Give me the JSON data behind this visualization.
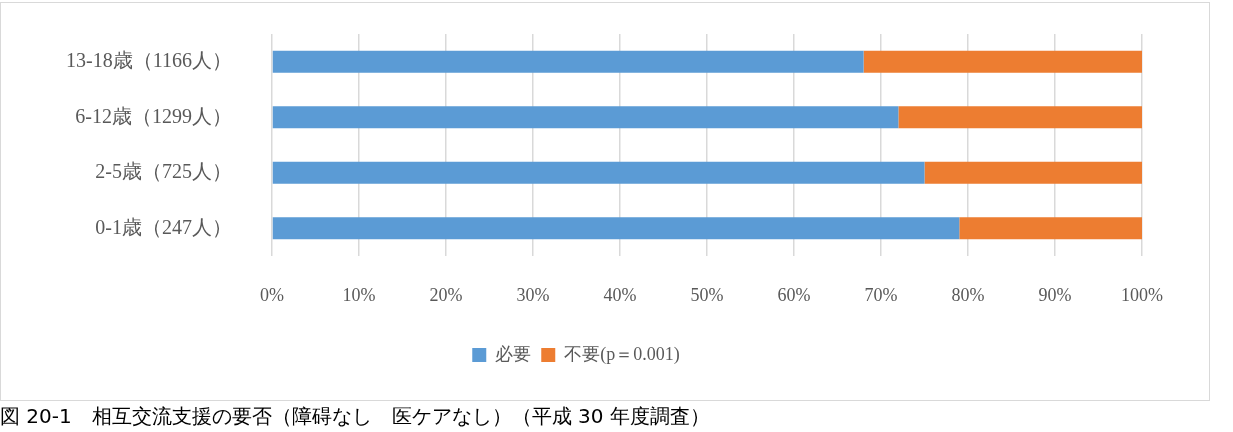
{
  "chart_data": {
    "type": "bar",
    "orientation": "horizontal",
    "stacked": true,
    "categories": [
      "13-18歳（1166人）",
      "6-12歳（1299人）",
      "2-5歳（725人）",
      "0-1歳（247人）"
    ],
    "series": [
      {
        "name": "必要",
        "color": "#5b9bd5",
        "values": [
          68,
          72,
          75,
          79
        ]
      },
      {
        "name": "不要(p＝0.001)",
        "color": "#ed7d31",
        "values": [
          32,
          28,
          25,
          21
        ]
      }
    ],
    "xlim": [
      0,
      100
    ],
    "xticks": [
      {
        "value": 0,
        "label": "0%"
      },
      {
        "value": 10,
        "label": "10%"
      },
      {
        "value": 20,
        "label": "20%"
      },
      {
        "value": 30,
        "label": "30%"
      },
      {
        "value": 40,
        "label": "40%"
      },
      {
        "value": 50,
        "label": "50%"
      },
      {
        "value": 60,
        "label": "60%"
      },
      {
        "value": 70,
        "label": "70%"
      },
      {
        "value": 80,
        "label": "80%"
      },
      {
        "value": 90,
        "label": "90%"
      },
      {
        "value": 100,
        "label": "100%"
      }
    ],
    "grid": "x",
    "legend": "bottom",
    "annotations": [
      "図 20-1　相互交流支援の要否（障碍なし　医ケアなし）（平成 30 年度調査）"
    ]
  }
}
